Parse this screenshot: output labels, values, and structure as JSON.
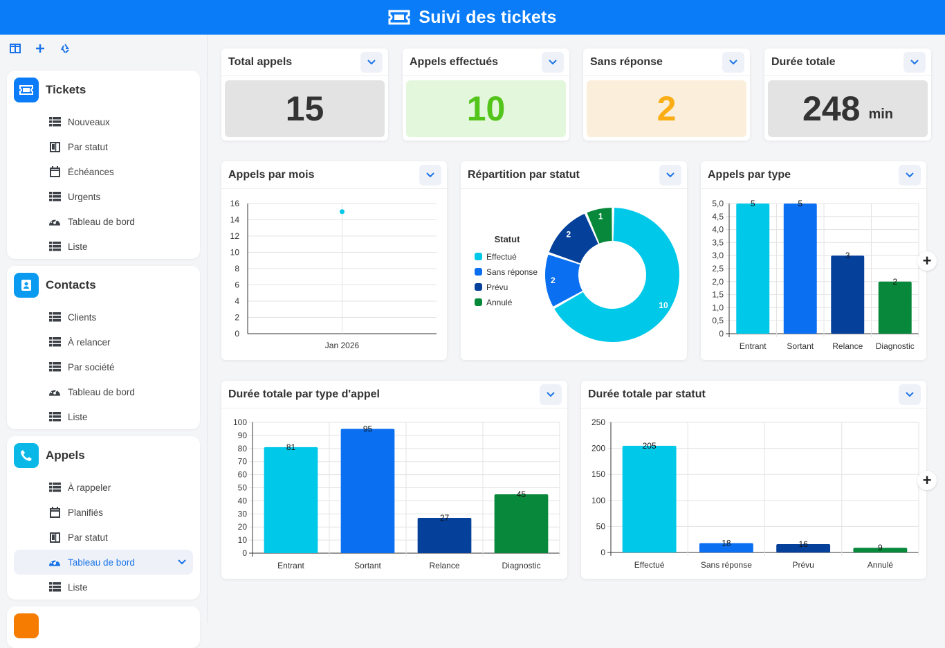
{
  "header": {
    "title": "Suivi des tickets",
    "icon": "ticket-icon"
  },
  "sidebar": {
    "toolbar": [
      "layout-icon",
      "plus-icon",
      "recycle-icon"
    ],
    "sections": [
      {
        "title": "Tickets",
        "color": "#0a7cf8",
        "icon": "ticket-icon",
        "items": [
          {
            "label": "Nouveaux",
            "icon": "table-icon"
          },
          {
            "label": "Par statut",
            "icon": "kanban-icon"
          },
          {
            "label": "Échéances",
            "icon": "calendar-icon"
          },
          {
            "label": "Urgents",
            "icon": "table-icon"
          },
          {
            "label": "Tableau de bord",
            "icon": "gauge-icon"
          },
          {
            "label": "Liste",
            "icon": "table-icon"
          }
        ]
      },
      {
        "title": "Contacts",
        "color": "#0a9bf0",
        "icon": "contact-card-icon",
        "items": [
          {
            "label": "Clients",
            "icon": "table-icon"
          },
          {
            "label": "À relancer",
            "icon": "table-icon"
          },
          {
            "label": "Par société",
            "icon": "table-icon"
          },
          {
            "label": "Tableau de bord",
            "icon": "gauge-icon"
          },
          {
            "label": "Liste",
            "icon": "table-icon"
          }
        ]
      },
      {
        "title": "Appels",
        "color": "#0ab8e8",
        "icon": "phone-icon",
        "items": [
          {
            "label": "À rappeler",
            "icon": "table-icon"
          },
          {
            "label": "Planifiés",
            "icon": "calendar-icon"
          },
          {
            "label": "Par statut",
            "icon": "kanban-icon"
          },
          {
            "label": "Tableau de bord",
            "icon": "gauge-icon",
            "active": true
          },
          {
            "label": "Liste",
            "icon": "table-icon"
          }
        ]
      }
    ]
  },
  "kpis": [
    {
      "title": "Total appels",
      "value": "15",
      "unit": "",
      "bg": "#e3e3e3",
      "fg": "#333333"
    },
    {
      "title": "Appels effectués",
      "value": "10",
      "unit": "",
      "bg": "#e3f7dd",
      "fg": "#52c41a"
    },
    {
      "title": "Sans réponse",
      "value": "2",
      "unit": "",
      "bg": "#fbefdc",
      "fg": "#faad14"
    },
    {
      "title": "Durée totale",
      "value": "248",
      "unit": "min",
      "bg": "#e3e3e3",
      "fg": "#333333"
    }
  ],
  "cards": {
    "appels_mois": "Appels par mois",
    "repartition": "Répartition par statut",
    "appels_type": "Appels par type",
    "duree_type": "Durée totale par type d'appel",
    "duree_statut": "Durée totale par statut"
  },
  "chart_data": [
    {
      "type": "scatter",
      "title": "Appels par mois",
      "x": [
        "Jan 2026"
      ],
      "values": [
        15
      ],
      "yticks": [
        "0",
        "2",
        "4",
        "6",
        "8",
        "10",
        "12",
        "14",
        "16"
      ],
      "ylim": [
        0,
        16
      ],
      "color": "#00c8e8"
    },
    {
      "type": "pie",
      "title": "Répartition par statut",
      "legend_title": "Statut",
      "labels": [
        "Effectué",
        "Sans réponse",
        "Prévu",
        "Annulé"
      ],
      "values": [
        10,
        2,
        2,
        1
      ],
      "colors": [
        "#00c8e8",
        "#0a6ff0",
        "#05419a",
        "#07883a"
      ]
    },
    {
      "type": "bar",
      "title": "Appels par type",
      "categories": [
        "Entrant",
        "Sortant",
        "Relance",
        "Diagnostic"
      ],
      "values": [
        5,
        5,
        3,
        2
      ],
      "yticks": [
        "0",
        "0,5",
        "1,0",
        "1,5",
        "2,0",
        "2,5",
        "3,0",
        "3,5",
        "4,0",
        "4,5",
        "5,0"
      ],
      "ylim": [
        0,
        5
      ],
      "colors": [
        "#00c8e8",
        "#0a6ff0",
        "#05419a",
        "#07883a"
      ]
    },
    {
      "type": "bar",
      "title": "Durée totale par type d'appel",
      "categories": [
        "Entrant",
        "Sortant",
        "Relance",
        "Diagnostic"
      ],
      "values": [
        81,
        95,
        27,
        45
      ],
      "yticks": [
        "0",
        "10",
        "20",
        "30",
        "40",
        "50",
        "60",
        "70",
        "80",
        "90",
        "100"
      ],
      "ylim": [
        0,
        100
      ],
      "colors": [
        "#00c8e8",
        "#0a6ff0",
        "#05419a",
        "#07883a"
      ]
    },
    {
      "type": "bar",
      "title": "Durée totale par statut",
      "categories": [
        "Effectué",
        "Sans réponse",
        "Prévu",
        "Annulé"
      ],
      "values": [
        205,
        18,
        16,
        9
      ],
      "yticks": [
        "0",
        "50",
        "100",
        "150",
        "200",
        "250"
      ],
      "ylim": [
        0,
        250
      ],
      "colors": [
        "#00c8e8",
        "#0a6ff0",
        "#05419a",
        "#07883a"
      ]
    }
  ]
}
